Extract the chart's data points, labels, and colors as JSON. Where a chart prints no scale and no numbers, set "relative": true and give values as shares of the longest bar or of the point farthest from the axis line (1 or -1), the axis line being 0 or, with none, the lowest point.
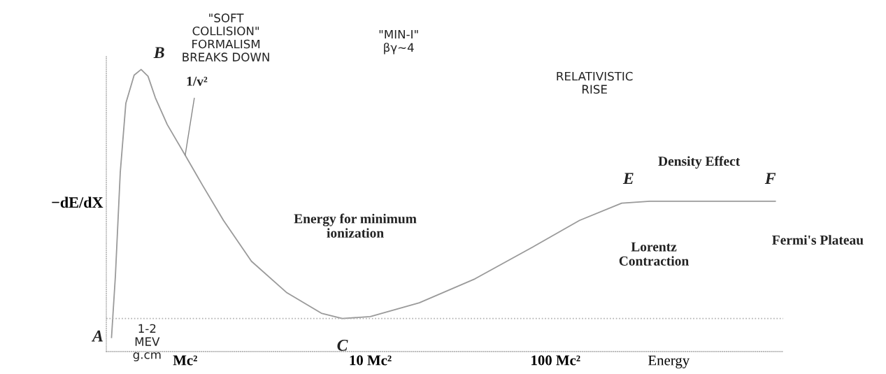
{
  "chart_data": {
    "type": "line",
    "relative": true,
    "log": "x",
    "grid": false,
    "legend": false,
    "marker": "none",
    "line_style": "solid",
    "tick_labels": "x",
    "xlabel": "Energy",
    "ylabel": "−dE/dX",
    "xlim": [
      0.375,
      1700
    ],
    "xticks": [
      {
        "value": 1,
        "label": "Mc²"
      },
      {
        "value": 10,
        "label": "10 Mc²"
      },
      {
        "value": 100,
        "label": "100 Mc²"
      }
    ],
    "x": [
      0.4,
      0.42,
      0.446,
      0.478,
      0.53,
      0.578,
      0.63,
      0.69,
      0.8,
      1.0,
      1.24,
      1.61,
      2.28,
      3.52,
      5.44,
      7.06,
      10,
      18.4,
      36.8,
      73.8,
      135,
      228,
      324,
      1540
    ],
    "series": [
      {
        "color": "#9a9a9a",
        "values": [
          0.05,
          0.27,
          0.635,
          0.88,
          0.98,
          1.0,
          0.976,
          0.9,
          0.805,
          0.696,
          0.59,
          0.465,
          0.32,
          0.21,
          0.136,
          0.117,
          0.124,
          0.173,
          0.258,
          0.367,
          0.465,
          0.526,
          0.533,
          0.533
        ]
      }
    ],
    "ref_lines": [
      {
        "axis": "y",
        "value": 0.117,
        "color": "#b0b0b0",
        "line_style": "dotted"
      }
    ],
    "annotations": [
      {
        "text": "A",
        "x": 0.4,
        "y": 0.05
      },
      {
        "text": "B",
        "x": 0.69,
        "y": 0.9
      },
      {
        "text": "C",
        "x": 7.06,
        "y": 0.117
      },
      {
        "text": "E",
        "x": 324,
        "y": 0.533
      },
      {
        "text": "F",
        "x": 1540,
        "y": 0.533
      },
      {
        "text": "1/v²",
        "x": 1.0,
        "y": 0.696
      },
      "Energy for minimum\nionization",
      "Lorentz\nContraction",
      "Density Effect",
      "Fermi's Plateau",
      "\"SOFT\nCOLLISION\"\nFORMALISM\nBREAKS DOWN",
      "\"MIN-I\"\nβγ~4",
      "RELATIVISTIC\nRISE",
      "1-2\nMEV\ng.cm"
    ]
  }
}
